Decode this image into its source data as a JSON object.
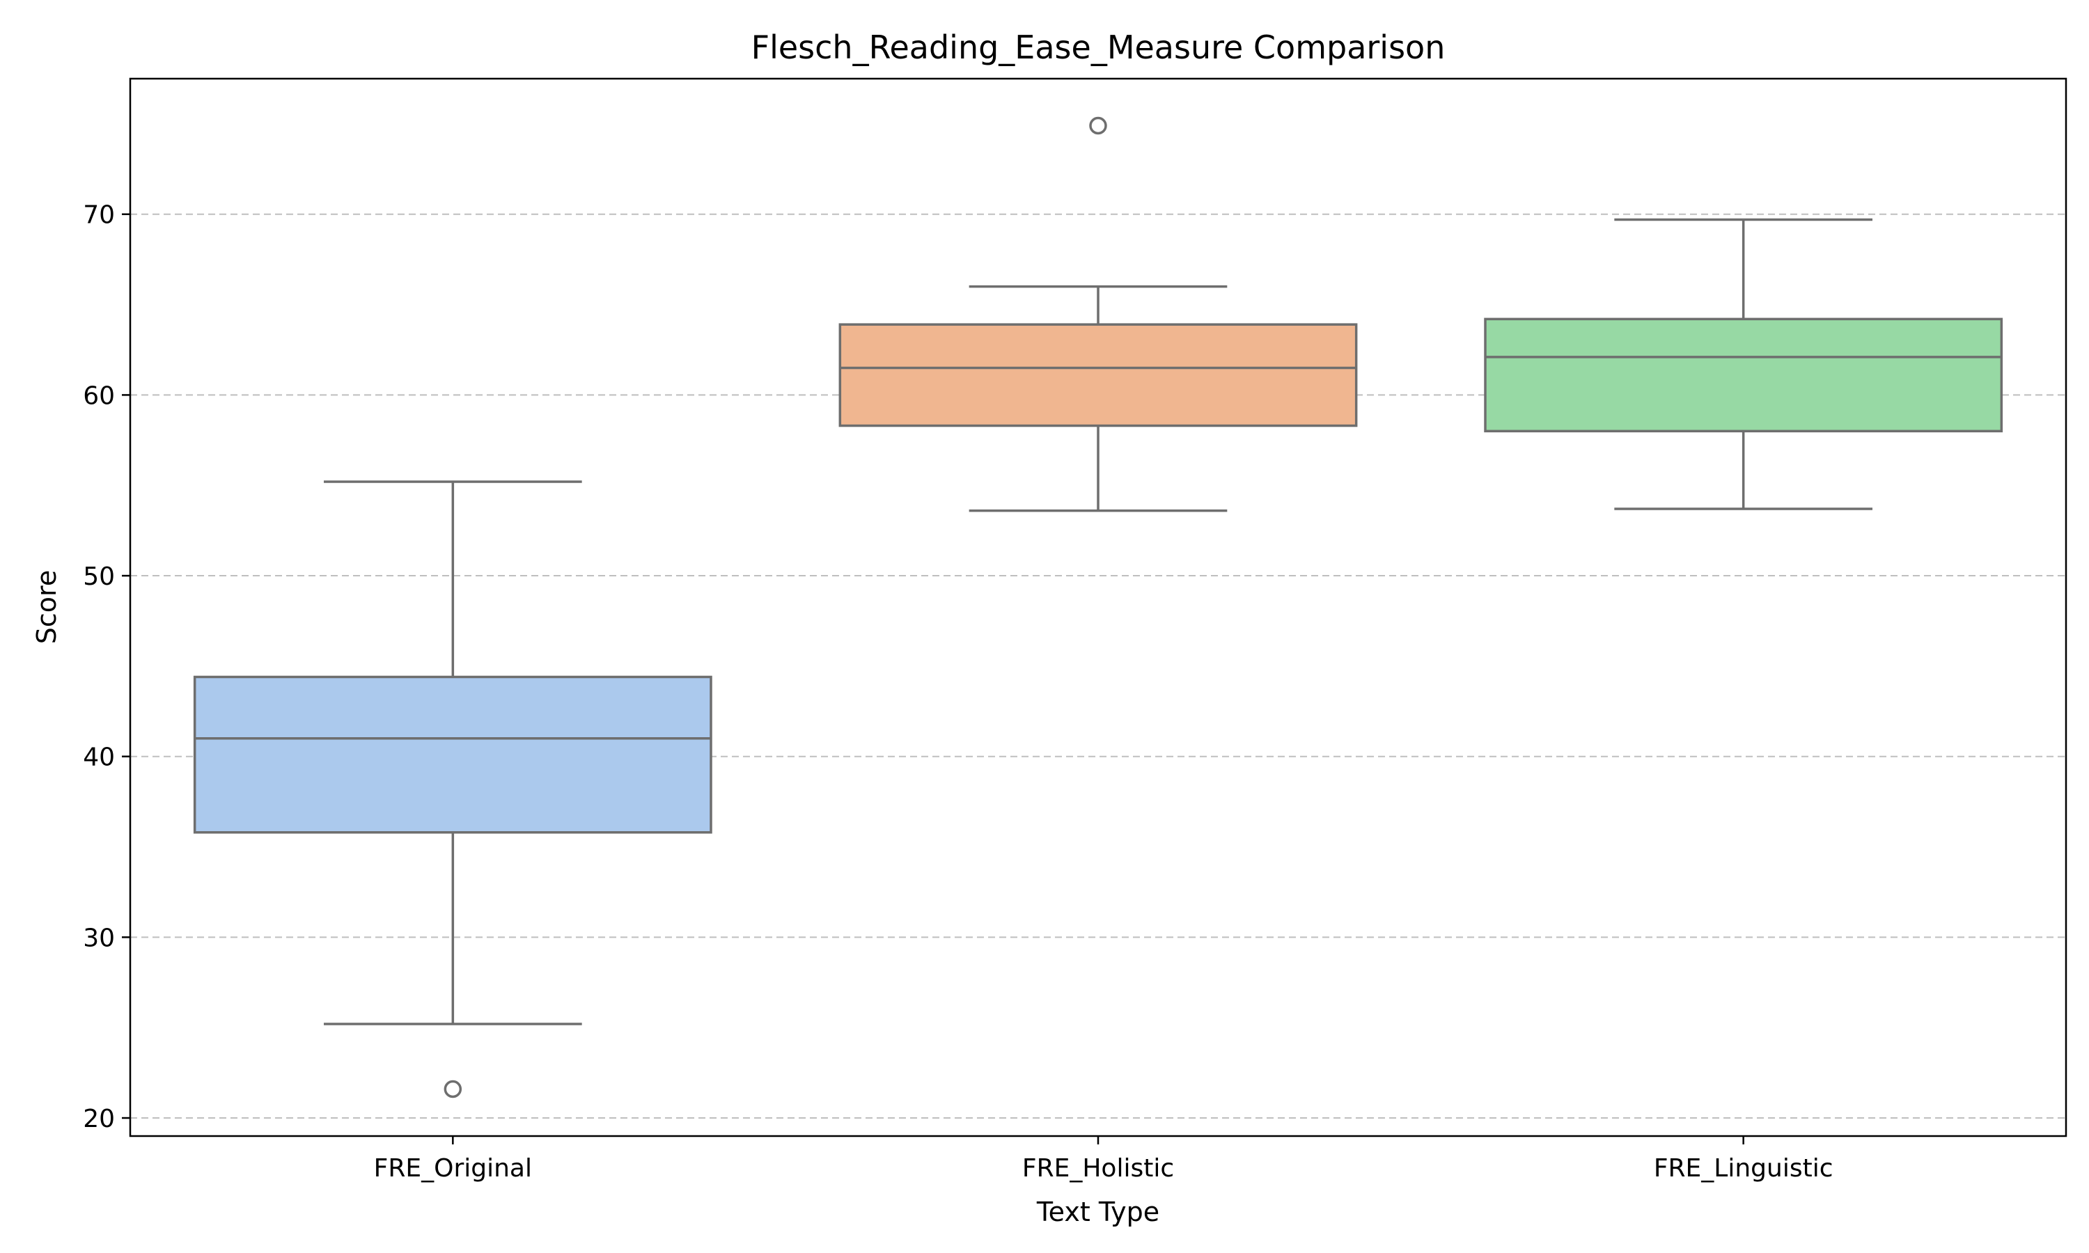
{
  "chart_data": {
    "type": "box",
    "title": "Flesch_Reading_Ease_Measure Comparison",
    "xlabel": "Text Type",
    "ylabel": "Score",
    "ylim": [
      19,
      77.5
    ],
    "yticks": [
      20,
      30,
      40,
      50,
      60,
      70
    ],
    "grid": "y-dashed",
    "categories": [
      "FRE_Original",
      "FRE_Holistic",
      "FRE_Linguistic"
    ],
    "boxes": [
      {
        "category": "FRE_Original",
        "whislo": 25.2,
        "q1": 35.8,
        "med": 41.0,
        "q3": 44.4,
        "whishi": 55.2,
        "fliers": [
          21.6
        ],
        "color": "#abc9ed"
      },
      {
        "category": "FRE_Holistic",
        "whislo": 53.6,
        "q1": 58.3,
        "med": 61.5,
        "q3": 63.9,
        "whishi": 66.0,
        "fliers": [
          74.9
        ],
        "color": "#f0b690"
      },
      {
        "category": "FRE_Linguistic",
        "whislo": 53.7,
        "q1": 58.0,
        "med": 62.1,
        "q3": 64.2,
        "whishi": 69.7,
        "fliers": [],
        "color": "#97d9a4"
      }
    ]
  }
}
